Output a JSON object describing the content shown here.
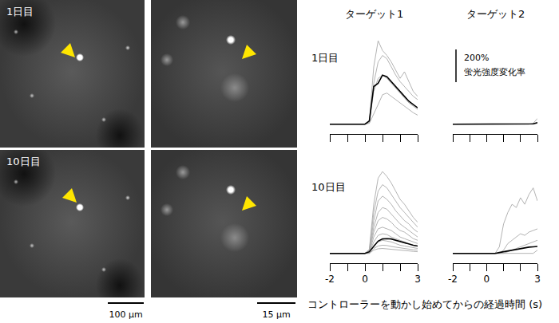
{
  "figure": {
    "image_rows": [
      {
        "label": "1日目"
      },
      {
        "label": "10日目"
      }
    ],
    "scale_bars": [
      "100 μm",
      "15 μm"
    ],
    "x_axis_label": "コントローラーを動かし始めてからの経過時間 (s)"
  },
  "chart_data": [
    {
      "type": "line",
      "title": "ターゲット1",
      "annotations": [
        "1日目"
      ],
      "x": [
        -2,
        -1.75,
        -1.5,
        -1.25,
        -1,
        -0.75,
        -0.5,
        -0.25,
        0,
        0.25,
        0.5,
        0.75,
        1,
        1.25,
        1.5,
        1.75,
        2,
        2.25,
        2.5,
        2.75,
        3
      ],
      "xlim": [
        -2,
        3
      ],
      "ylim": [
        -60,
        520
      ],
      "xticks": [
        -2,
        -1,
        0,
        1,
        2,
        3
      ],
      "tick_labels": false,
      "series": [
        {
          "color": "#aaaaaa",
          "values": [
            0,
            0,
            0,
            0,
            0,
            0,
            0,
            0,
            0,
            20,
            350,
            510,
            450,
            420,
            380,
            330,
            280,
            320,
            260,
            200,
            170
          ]
        },
        {
          "color": "#aaaaaa",
          "values": [
            0,
            0,
            0,
            0,
            0,
            0,
            0,
            0,
            0,
            15,
            250,
            380,
            420,
            400,
            350,
            300,
            260,
            230,
            200,
            170,
            150
          ]
        },
        {
          "color": "#aaaaaa",
          "values": [
            0,
            0,
            0,
            0,
            0,
            0,
            0,
            0,
            0,
            10,
            200,
            280,
            300,
            280,
            250,
            220,
            190,
            160,
            130,
            110,
            90
          ]
        },
        {
          "color": "#aaaaaa",
          "values": [
            0,
            0,
            0,
            0,
            0,
            0,
            0,
            0,
            0,
            5,
            60,
            120,
            180,
            190,
            170,
            150,
            130,
            110,
            90,
            70,
            55
          ]
        },
        {
          "color": "#000000",
          "values": [
            0,
            0,
            0,
            0,
            0,
            0,
            0,
            0,
            0,
            20,
            230,
            250,
            300,
            290,
            260,
            230,
            200,
            170,
            140,
            120,
            100
          ]
        }
      ]
    },
    {
      "type": "line",
      "title": "ターゲット2",
      "x": [
        -2,
        -1.75,
        -1.5,
        -1.25,
        -1,
        -0.75,
        -0.5,
        -0.25,
        0,
        0.25,
        0.5,
        0.75,
        1,
        1.25,
        1.5,
        1.75,
        2,
        2.25,
        2.5,
        2.75,
        3
      ],
      "xlim": [
        -2,
        3
      ],
      "ylim": [
        -60,
        520
      ],
      "xticks": [
        -2,
        -1,
        0,
        1,
        2,
        3
      ],
      "tick_labels": false,
      "scale_bar": {
        "value": 200,
        "labels": [
          "200%",
          "蛍光強度変化率"
        ]
      },
      "series": [
        {
          "color": "#aaaaaa",
          "values": [
            0,
            0,
            0,
            0,
            0,
            0,
            0,
            0,
            0,
            0,
            0,
            0,
            0,
            0,
            0,
            0,
            0,
            0,
            0,
            5,
            35
          ]
        },
        {
          "color": "#aaaaaa",
          "values": [
            0,
            0,
            0,
            0,
            0,
            0,
            0,
            0,
            0,
            0,
            0,
            0,
            0,
            0,
            0,
            0,
            0,
            0,
            0,
            0,
            5
          ]
        },
        {
          "color": "#000000",
          "values": [
            0,
            0,
            0,
            0,
            0,
            0,
            0,
            0,
            0,
            0,
            0,
            0,
            0,
            0,
            0,
            0,
            0,
            0,
            0,
            2,
            10
          ]
        }
      ]
    },
    {
      "type": "line",
      "annotations": [
        "10日目"
      ],
      "x": [
        -2,
        -1.75,
        -1.5,
        -1.25,
        -1,
        -0.75,
        -0.5,
        -0.25,
        0,
        0.25,
        0.5,
        0.75,
        1,
        1.25,
        1.5,
        1.75,
        2,
        2.25,
        2.5,
        2.75,
        3
      ],
      "xlim": [
        -2,
        3
      ],
      "ylim": [
        -60,
        520
      ],
      "xticks": [
        -2,
        {
          "value": -1,
          "label": null
        },
        0,
        {
          "value": 1,
          "label": null
        },
        {
          "value": 2,
          "label": null
        },
        3
      ],
      "tick_labels": "x",
      "series": [
        {
          "color": "#aaaaaa",
          "values": [
            0,
            0,
            0,
            0,
            0,
            0,
            0,
            0,
            0,
            25,
            300,
            460,
            500,
            470,
            430,
            380,
            330,
            300,
            260,
            220,
            190
          ]
        },
        {
          "color": "#aaaaaa",
          "values": [
            0,
            0,
            0,
            0,
            0,
            0,
            0,
            0,
            0,
            20,
            250,
            380,
            420,
            400,
            360,
            320,
            280,
            250,
            220,
            190,
            160
          ]
        },
        {
          "color": "#aaaaaa",
          "values": [
            0,
            0,
            0,
            0,
            0,
            0,
            0,
            0,
            0,
            15,
            200,
            320,
            350,
            330,
            300,
            260,
            230,
            200,
            180,
            150,
            130
          ]
        },
        {
          "color": "#aaaaaa",
          "values": [
            0,
            0,
            0,
            0,
            0,
            0,
            0,
            0,
            0,
            10,
            160,
            250,
            280,
            270,
            240,
            210,
            180,
            160,
            140,
            120,
            100
          ]
        },
        {
          "color": "#aaaaaa",
          "values": [
            0,
            0,
            0,
            0,
            0,
            0,
            0,
            0,
            0,
            10,
            130,
            200,
            220,
            210,
            190,
            160,
            140,
            130,
            110,
            90,
            80
          ]
        },
        {
          "color": "#aaaaaa",
          "values": [
            0,
            0,
            0,
            0,
            0,
            0,
            0,
            0,
            0,
            5,
            100,
            150,
            160,
            150,
            140,
            120,
            100,
            90,
            80,
            70,
            60
          ]
        },
        {
          "color": "#aaaaaa",
          "values": [
            0,
            0,
            0,
            0,
            0,
            0,
            0,
            0,
            0,
            5,
            70,
            110,
            120,
            115,
            100,
            90,
            80,
            70,
            60,
            50,
            45
          ]
        },
        {
          "color": "#aaaaaa",
          "values": [
            0,
            0,
            0,
            0,
            0,
            0,
            0,
            0,
            0,
            5,
            50,
            70,
            80,
            75,
            70,
            60,
            50,
            45,
            40,
            35,
            30
          ]
        },
        {
          "color": "#aaaaaa",
          "values": [
            0,
            0,
            0,
            0,
            0,
            0,
            0,
            0,
            0,
            0,
            30,
            45,
            50,
            48,
            42,
            38,
            32,
            28,
            25,
            22,
            20
          ]
        },
        {
          "color": "#aaaaaa",
          "values": [
            0,
            0,
            0,
            0,
            0,
            0,
            0,
            0,
            0,
            0,
            20,
            28,
            30,
            28,
            25,
            22,
            20,
            18,
            15,
            12,
            10
          ]
        },
        {
          "color": "#000000",
          "values": [
            0,
            0,
            0,
            0,
            0,
            0,
            0,
            0,
            0,
            10,
            40,
            75,
            88,
            90,
            88,
            80,
            72,
            65,
            58,
            50,
            45
          ]
        }
      ]
    },
    {
      "type": "line",
      "x": [
        -2,
        -1.75,
        -1.5,
        -1.25,
        -1,
        -0.75,
        -0.5,
        -0.25,
        0,
        0.25,
        0.5,
        0.75,
        1,
        1.25,
        1.5,
        1.75,
        2,
        2.25,
        2.5,
        2.75,
        3
      ],
      "xlim": [
        -2,
        3
      ],
      "ylim": [
        -60,
        520
      ],
      "xticks": [
        -2,
        {
          "value": -1,
          "label": null
        },
        0,
        {
          "value": 1,
          "label": null
        },
        {
          "value": 2,
          "label": null
        },
        3
      ],
      "tick_labels": "x",
      "series": [
        {
          "color": "#aaaaaa",
          "values": [
            0,
            0,
            0,
            0,
            0,
            0,
            0,
            0,
            0,
            0,
            0,
            40,
            180,
            250,
            300,
            280,
            340,
            300,
            360,
            400,
            320
          ]
        },
        {
          "color": "#aaaaaa",
          "values": [
            0,
            0,
            0,
            0,
            0,
            0,
            0,
            0,
            0,
            0,
            0,
            0,
            20,
            60,
            80,
            100,
            120,
            110,
            130,
            140,
            150
          ]
        },
        {
          "color": "#aaaaaa",
          "values": [
            0,
            0,
            0,
            0,
            0,
            0,
            0,
            0,
            0,
            0,
            0,
            0,
            0,
            10,
            20,
            30,
            40,
            50,
            60,
            70,
            80
          ]
        },
        {
          "color": "#aaaaaa",
          "values": [
            0,
            0,
            0,
            0,
            0,
            0,
            0,
            0,
            0,
            0,
            0,
            0,
            0,
            0,
            0,
            0,
            0,
            0,
            0,
            0,
            20
          ]
        },
        {
          "color": "#000000",
          "values": [
            0,
            0,
            0,
            0,
            0,
            0,
            0,
            0,
            0,
            0,
            0,
            5,
            10,
            15,
            20,
            25,
            30,
            35,
            38,
            40,
            42
          ]
        }
      ]
    }
  ]
}
